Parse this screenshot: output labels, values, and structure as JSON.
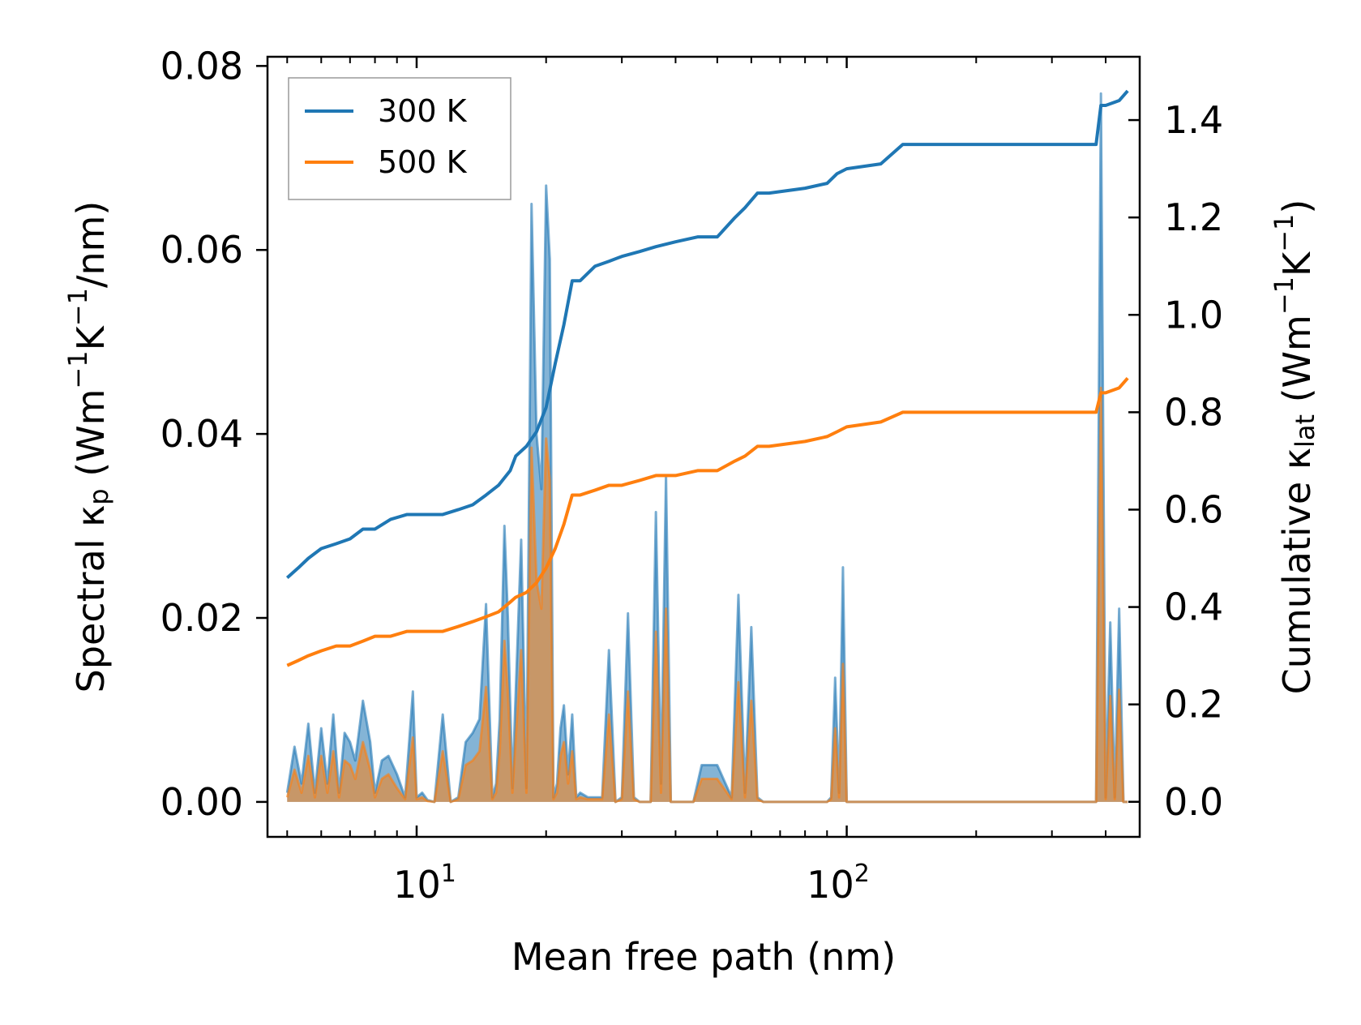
{
  "chart_data": {
    "type": "line",
    "xscale": "log",
    "xlim": [
      4.5,
      480
    ],
    "xlabel": "Mean free path (nm)",
    "x_ticks": [
      {
        "value": 10,
        "base": "10",
        "exp": "1"
      },
      {
        "value": 100,
        "base": "10",
        "exp": "2"
      }
    ],
    "left_axis": {
      "label_prefix": "Spectral κ",
      "label_sub": "p",
      "label_units_open": " (Wm",
      "label_sup1": "−1",
      "label_units_mid": "K",
      "label_sup2": "−1",
      "label_units_close": "/nm)",
      "ylim": [
        -0.0038,
        0.081
      ],
      "ticks": [
        0.0,
        0.02,
        0.04,
        0.06,
        0.08
      ],
      "tick_labels": [
        "0.00",
        "0.02",
        "0.04",
        "0.06",
        "0.08"
      ]
    },
    "right_axis": {
      "label_prefix": "Cumulative κ",
      "label_sub": "lat",
      "label_units_open": " (Wm",
      "label_sup1": "−1",
      "label_units_mid": "K",
      "label_sup2": "−1",
      "label_units_close": ")",
      "ylim": [
        -0.072,
        1.53
      ],
      "ticks": [
        0.0,
        0.2,
        0.4,
        0.6,
        0.8,
        1.0,
        1.2,
        1.4
      ],
      "tick_labels": [
        "0.0",
        "0.2",
        "0.4",
        "0.6",
        "0.8",
        "1.0",
        "1.2",
        "1.4"
      ]
    },
    "legend": {
      "location": "upper-left"
    },
    "series": [
      {
        "name": "300 K",
        "color": "#1f77b4",
        "cumulative": {
          "x": [
            5.0,
            5.3,
            5.6,
            6.0,
            6.5,
            7.0,
            7.5,
            8.0,
            8.7,
            9.5,
            10.0,
            11.5,
            12.5,
            13.5,
            14.5,
            15.5,
            16.5,
            17.0,
            18.0,
            19.0,
            20.0,
            21.0,
            22.0,
            23.0,
            24.0,
            26.0,
            28.0,
            30.0,
            33.0,
            36.0,
            40.0,
            45.0,
            50.0,
            55.0,
            58.0,
            62.0,
            66.0,
            80.0,
            90.0,
            95.0,
            100.0,
            120.0,
            135.0,
            145.0,
            380.0,
            390.0,
            400.0,
            430.0,
            450.0
          ],
          "y": [
            0.46,
            0.48,
            0.5,
            0.52,
            0.53,
            0.54,
            0.56,
            0.56,
            0.58,
            0.59,
            0.59,
            0.59,
            0.6,
            0.61,
            0.63,
            0.65,
            0.68,
            0.71,
            0.73,
            0.76,
            0.81,
            0.9,
            0.98,
            1.07,
            1.07,
            1.1,
            1.11,
            1.12,
            1.13,
            1.14,
            1.15,
            1.16,
            1.16,
            1.2,
            1.22,
            1.25,
            1.25,
            1.26,
            1.27,
            1.29,
            1.3,
            1.31,
            1.35,
            1.35,
            1.35,
            1.43,
            1.43,
            1.44,
            1.46
          ]
        },
        "spectral": {
          "x": [
            5.0,
            5.2,
            5.4,
            5.6,
            5.8,
            6.0,
            6.2,
            6.4,
            6.6,
            6.8,
            7.0,
            7.2,
            7.5,
            7.8,
            8.0,
            8.3,
            8.6,
            9.0,
            9.4,
            9.8,
            10.0,
            10.3,
            10.6,
            11.0,
            11.5,
            12.0,
            12.5,
            13.0,
            13.5,
            14.0,
            14.5,
            15.0,
            15.3,
            15.6,
            16.0,
            16.3,
            16.7,
            17.0,
            17.5,
            18.0,
            18.5,
            19.0,
            19.5,
            20.0,
            20.4,
            20.8,
            21.2,
            21.6,
            22.0,
            22.5,
            23.0,
            23.5,
            24.0,
            25.0,
            27.0,
            28.0,
            29.0,
            30.0,
            31.0,
            32.0,
            33.0,
            34.0,
            35.0,
            36.0,
            37.0,
            38.0,
            39.0,
            40.0,
            42.0,
            43.0,
            44.0,
            46.0,
            50.0,
            54.0,
            56.0,
            58.0,
            60.0,
            62.0,
            64.0,
            66.0,
            70.0,
            80.0,
            85.0,
            88.0,
            90.0,
            92.0,
            94.0,
            96.0,
            98.0,
            100.0,
            102.0,
            110.0,
            120.0,
            125.0,
            130.0,
            135.0,
            140.0,
            145.0,
            150.0,
            200.0,
            300.0,
            370.0,
            375.0,
            380.0,
            390.0,
            400.0,
            410.0,
            420.0,
            430.0,
            440.0,
            450.0
          ],
          "y": [
            0.001,
            0.006,
            0.002,
            0.0085,
            0.001,
            0.008,
            0.002,
            0.0095,
            0.001,
            0.0075,
            0.0065,
            0.0045,
            0.011,
            0.0065,
            0.001,
            0.0045,
            0.005,
            0.003,
            0.0005,
            0.012,
            0.0005,
            0.001,
            0.0002,
            0.0,
            0.0095,
            0.0,
            0.0005,
            0.0065,
            0.0075,
            0.009,
            0.0215,
            0.0005,
            0.002,
            0.009,
            0.03,
            0.02,
            0.0015,
            0.012,
            0.0285,
            0.0015,
            0.065,
            0.04,
            0.034,
            0.067,
            0.059,
            0.0005,
            0.002,
            0.008,
            0.0105,
            0.003,
            0.0095,
            0.0005,
            0.001,
            0.0005,
            0.0005,
            0.0165,
            0.0,
            0.0005,
            0.0205,
            0.0005,
            0.0,
            0.0,
            0.0,
            0.0315,
            0.002,
            0.0355,
            0.0,
            0.0,
            0.0,
            0.0,
            0.0,
            0.004,
            0.004,
            0.0005,
            0.0225,
            0.001,
            0.019,
            0.0005,
            0.0,
            0.0,
            0.0,
            0.0,
            0.0,
            0.0,
            0.0,
            0.0005,
            0.0135,
            0.001,
            0.0255,
            0.0,
            0.0,
            0.0,
            0.0,
            0.0,
            0.0,
            0.0,
            0.0,
            0.0,
            0.0,
            0.0,
            0.0,
            0.0,
            0.0,
            0.0,
            0.077,
            0.0005,
            0.0195,
            0.0005,
            0.021,
            0.0,
            0.0
          ]
        }
      },
      {
        "name": "500 K",
        "color": "#ff7f0e",
        "cumulative": {
          "x": [
            5.0,
            5.3,
            5.6,
            6.0,
            6.5,
            7.0,
            7.5,
            8.0,
            8.7,
            9.5,
            10.0,
            11.5,
            12.5,
            13.5,
            14.5,
            15.5,
            16.5,
            17.0,
            18.0,
            19.0,
            20.0,
            21.0,
            22.0,
            23.0,
            24.0,
            26.0,
            28.0,
            30.0,
            33.0,
            36.0,
            40.0,
            45.0,
            50.0,
            55.0,
            58.0,
            62.0,
            66.0,
            80.0,
            90.0,
            95.0,
            100.0,
            120.0,
            135.0,
            145.0,
            380.0,
            390.0,
            400.0,
            430.0,
            450.0
          ],
          "y": [
            0.28,
            0.29,
            0.3,
            0.31,
            0.32,
            0.32,
            0.33,
            0.34,
            0.34,
            0.35,
            0.35,
            0.35,
            0.36,
            0.37,
            0.38,
            0.39,
            0.41,
            0.42,
            0.43,
            0.45,
            0.48,
            0.52,
            0.57,
            0.63,
            0.63,
            0.64,
            0.65,
            0.65,
            0.66,
            0.67,
            0.67,
            0.68,
            0.68,
            0.7,
            0.71,
            0.73,
            0.73,
            0.74,
            0.75,
            0.76,
            0.77,
            0.78,
            0.8,
            0.8,
            0.8,
            0.84,
            0.84,
            0.85,
            0.87
          ]
        },
        "spectral": {
          "x": [
            5.0,
            5.2,
            5.4,
            5.6,
            5.8,
            6.0,
            6.2,
            6.4,
            6.6,
            6.8,
            7.0,
            7.2,
            7.5,
            7.8,
            8.0,
            8.3,
            8.6,
            9.0,
            9.4,
            9.8,
            10.0,
            10.3,
            10.6,
            11.0,
            11.5,
            12.0,
            12.5,
            13.0,
            13.5,
            14.0,
            14.5,
            15.0,
            15.3,
            15.6,
            16.0,
            16.3,
            16.7,
            17.0,
            17.5,
            18.0,
            18.5,
            19.0,
            19.5,
            20.0,
            20.4,
            20.8,
            21.2,
            21.6,
            22.0,
            22.5,
            23.0,
            23.5,
            24.0,
            25.0,
            27.0,
            28.0,
            29.0,
            30.0,
            31.0,
            32.0,
            33.0,
            34.0,
            35.0,
            36.0,
            37.0,
            38.0,
            39.0,
            40.0,
            42.0,
            43.0,
            44.0,
            46.0,
            50.0,
            54.0,
            56.0,
            58.0,
            60.0,
            62.0,
            64.0,
            66.0,
            70.0,
            80.0,
            85.0,
            88.0,
            90.0,
            92.0,
            94.0,
            96.0,
            98.0,
            100.0,
            102.0,
            110.0,
            120.0,
            125.0,
            130.0,
            135.0,
            140.0,
            145.0,
            150.0,
            200.0,
            300.0,
            370.0,
            375.0,
            380.0,
            390.0,
            400.0,
            410.0,
            420.0,
            430.0,
            440.0,
            450.0
          ],
          "y": [
            0.0005,
            0.0035,
            0.001,
            0.005,
            0.0005,
            0.005,
            0.001,
            0.0055,
            0.0005,
            0.0045,
            0.004,
            0.0025,
            0.0065,
            0.0035,
            0.0005,
            0.0025,
            0.003,
            0.0015,
            0.0003,
            0.007,
            0.0003,
            0.0005,
            0.0001,
            0.0,
            0.0055,
            0.0,
            0.0003,
            0.004,
            0.0045,
            0.0055,
            0.0125,
            0.0003,
            0.001,
            0.0055,
            0.0175,
            0.012,
            0.001,
            0.007,
            0.0165,
            0.001,
            0.0385,
            0.024,
            0.021,
            0.0395,
            0.035,
            0.0003,
            0.001,
            0.005,
            0.0065,
            0.002,
            0.0055,
            0.0003,
            0.0005,
            0.0003,
            0.0003,
            0.0095,
            0.0,
            0.0003,
            0.012,
            0.0003,
            0.0,
            0.0,
            0.0,
            0.0185,
            0.001,
            0.021,
            0.0,
            0.0,
            0.0,
            0.0,
            0.0,
            0.0025,
            0.0025,
            0.0003,
            0.013,
            0.0005,
            0.011,
            0.0003,
            0.0,
            0.0,
            0.0,
            0.0,
            0.0,
            0.0,
            0.0,
            0.0003,
            0.008,
            0.0005,
            0.015,
            0.0,
            0.0,
            0.0,
            0.0,
            0.0,
            0.0,
            0.0,
            0.0,
            0.0,
            0.0,
            0.0,
            0.0,
            0.0,
            0.0,
            0.0,
            0.045,
            0.0003,
            0.0115,
            0.0003,
            0.0122,
            0.0,
            0.0
          ]
        }
      }
    ]
  }
}
